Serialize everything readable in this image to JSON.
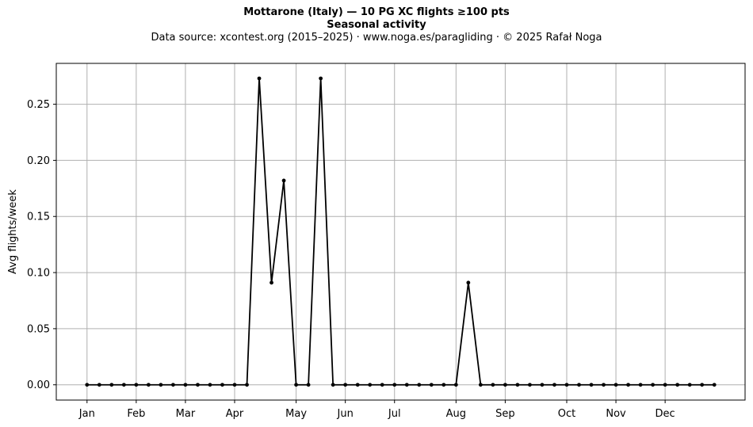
{
  "title": "Mottarone (Italy)  —  10 PG XC flights ≥100 pts",
  "subtitle": "Seasonal activity",
  "source": "Data source: xcontest.org (2015–2025)  ·  www.noga.es/paragliding  ·  © 2025 Rafał Noga",
  "colors": {
    "line": "#000000",
    "grid": "#b0b0b0",
    "axes": "#000000"
  },
  "chart_data": {
    "type": "line",
    "title": "Mottarone (Italy)  —  10 PG XC flights ≥100 pts",
    "subtitle": "Seasonal activity",
    "xlabel": "",
    "ylabel": "Avg flights/week",
    "x_unit": "week of year",
    "xlim": [
      -2.5,
      53.5
    ],
    "ylim": [
      -0.0136,
      0.2864
    ],
    "grid": true,
    "month_ticks": [
      {
        "week": 0,
        "label": "Jan"
      },
      {
        "week": 4,
        "label": "Feb"
      },
      {
        "week": 8,
        "label": "Mar"
      },
      {
        "week": 12,
        "label": "Apr"
      },
      {
        "week": 17,
        "label": "May"
      },
      {
        "week": 21,
        "label": "Jun"
      },
      {
        "week": 25,
        "label": "Jul"
      },
      {
        "week": 30,
        "label": "Aug"
      },
      {
        "week": 34,
        "label": "Sep"
      },
      {
        "week": 39,
        "label": "Oct"
      },
      {
        "week": 43,
        "label": "Nov"
      },
      {
        "week": 47,
        "label": "Dec"
      }
    ],
    "y_ticks": [
      0.0,
      0.05,
      0.1,
      0.15,
      0.2,
      0.25
    ],
    "y_tick_labels": [
      "0.00",
      "0.05",
      "0.10",
      "0.15",
      "0.20",
      "0.25"
    ],
    "series": [
      {
        "x": [
          0,
          1,
          2,
          3,
          4,
          5,
          6,
          7,
          8,
          9,
          10,
          11,
          12,
          13,
          14,
          15,
          16,
          17,
          18,
          19,
          20,
          21,
          22,
          23,
          24,
          25,
          26,
          27,
          28,
          29,
          30,
          31,
          32,
          33,
          34,
          35,
          36,
          37,
          38,
          39,
          40,
          41,
          42,
          43,
          44,
          45,
          46,
          47,
          48,
          49,
          50,
          51
        ],
        "values": [
          0,
          0,
          0,
          0,
          0,
          0,
          0,
          0,
          0,
          0,
          0,
          0,
          0,
          0,
          0.273,
          0.091,
          0.182,
          0,
          0,
          0.273,
          0,
          0,
          0,
          0,
          0,
          0,
          0,
          0,
          0,
          0,
          0,
          0.091,
          0,
          0,
          0,
          0,
          0,
          0,
          0,
          0,
          0,
          0,
          0,
          0,
          0,
          0,
          0,
          0,
          0,
          0,
          0,
          0
        ]
      }
    ]
  }
}
